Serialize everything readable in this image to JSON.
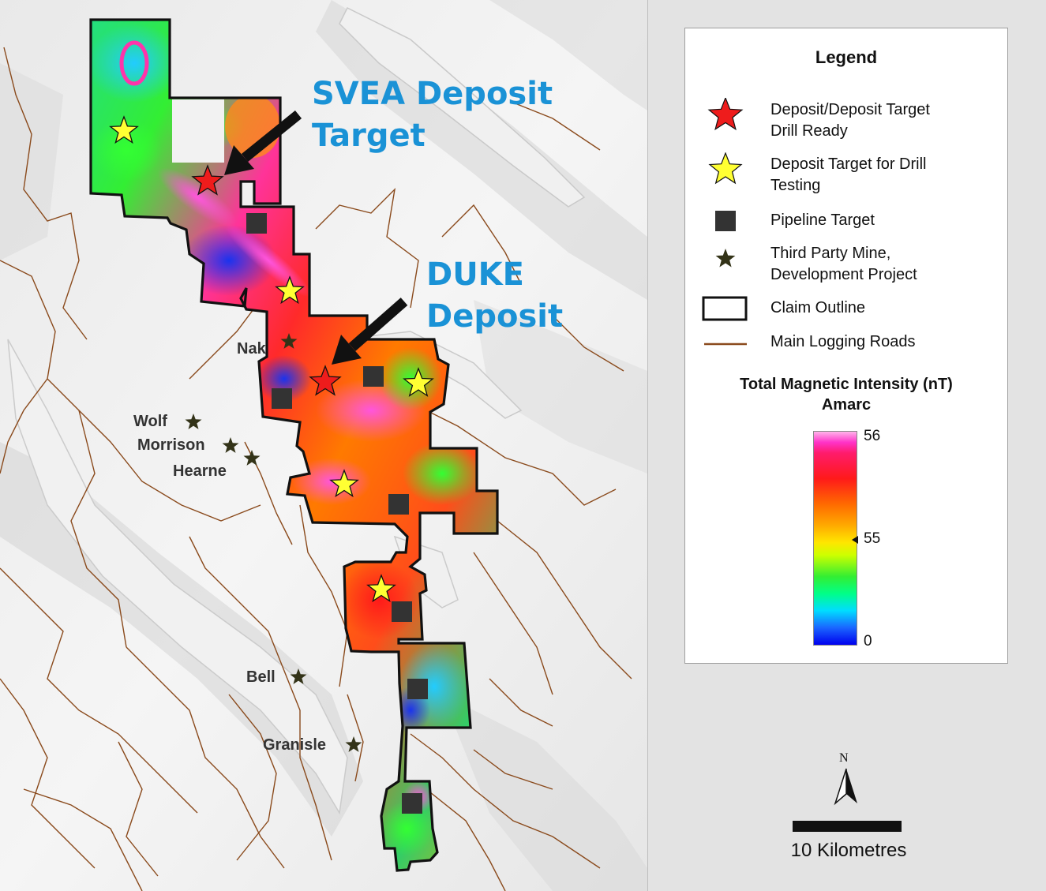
{
  "map": {
    "callouts": {
      "svea": "SVEA Deposit\nTarget",
      "duke": "DUKE\nDeposit"
    },
    "mines": [
      {
        "name": "Nak"
      },
      {
        "name": "Wolf"
      },
      {
        "name": "Morrison"
      },
      {
        "name": "Hearne"
      },
      {
        "name": "Bell"
      },
      {
        "name": "Granisle"
      }
    ]
  },
  "legend": {
    "title": "Legend",
    "items": [
      {
        "label": "Deposit/Deposit Target\nDrill Ready",
        "symbol": "red-star-icon",
        "color": "#ee1c1c"
      },
      {
        "label": "Deposit Target for Drill\nTesting",
        "symbol": "yellow-star-icon",
        "color": "#ffff33"
      },
      {
        "label": "Pipeline Target",
        "symbol": "dark-square-icon",
        "color": "#333333"
      },
      {
        "label": "Third Party Mine,\nDevelopment Project",
        "symbol": "dark-star-icon",
        "color": "#333318"
      },
      {
        "label": "Claim Outline",
        "symbol": "outline-rectangle-icon",
        "color": "#111111"
      },
      {
        "label": "Main Logging Roads",
        "symbol": "brown-line-icon",
        "color": "#8a4a1c"
      }
    ],
    "ramp": {
      "title_line1": "Total Magnetic Intensity (nT)",
      "title_line2": "Amarc",
      "max": "56",
      "mid": "55",
      "min": "0"
    }
  },
  "scalebar": {
    "label": "10 Kilometres",
    "north": "N"
  }
}
